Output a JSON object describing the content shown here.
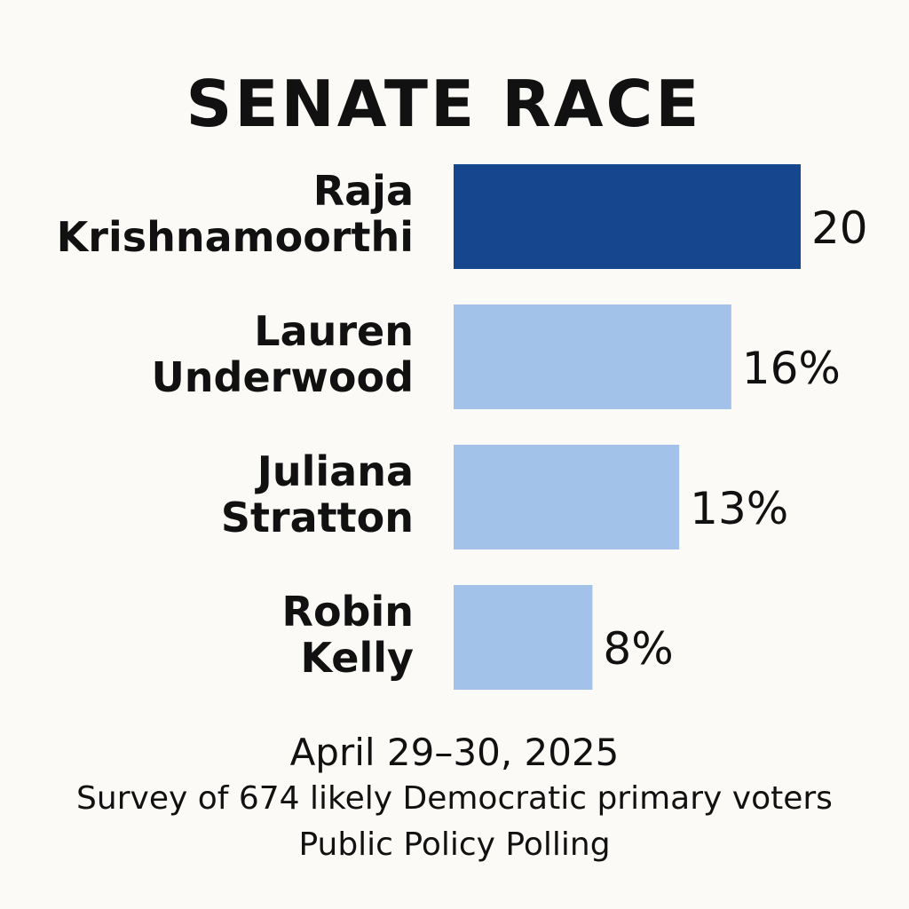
{
  "chart_data": {
    "type": "bar",
    "orientation": "horizontal",
    "title": "SENATE RACE",
    "categories": [
      [
        "Raja",
        "Krishnamoorthi"
      ],
      [
        "Lauren",
        "Underwood"
      ],
      [
        "Juliana",
        "Stratton"
      ],
      [
        "Robin",
        "Kelly"
      ]
    ],
    "values": [
      20,
      16,
      13,
      8
    ],
    "value_labels": [
      "20",
      "16%",
      "13%",
      "8%"
    ],
    "colors": [
      "#15468e",
      "#a2c2ea",
      "#a2c2ea",
      "#a2c2ea"
    ],
    "xlim": [
      0,
      20
    ],
    "grid": false,
    "legend": "none"
  },
  "footer": {
    "date": "April 29–30, 2025",
    "survey": "Survey of 674 likely Democratic primary voters",
    "source": "Public Policy Polling"
  }
}
